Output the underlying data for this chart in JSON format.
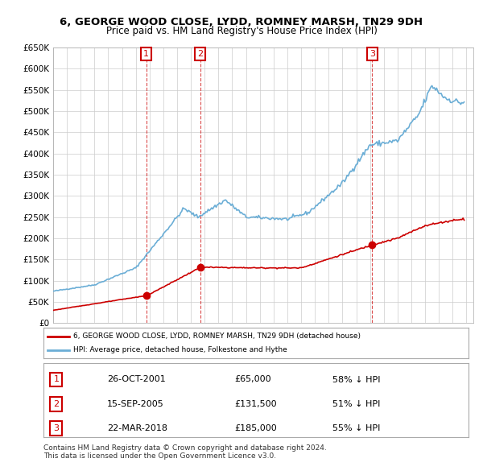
{
  "title": "6, GEORGE WOOD CLOSE, LYDD, ROMNEY MARSH, TN29 9DH",
  "subtitle": "Price paid vs. HM Land Registry's House Price Index (HPI)",
  "sales": [
    {
      "date": "2001-10-26",
      "price": 65000,
      "label": "1"
    },
    {
      "date": "2005-09-15",
      "price": 131500,
      "label": "2"
    },
    {
      "date": "2018-03-22",
      "price": 185000,
      "label": "3"
    }
  ],
  "sale_display": [
    {
      "num": "1",
      "date": "26-OCT-2001",
      "price": "£65,000",
      "pct": "58% ↓ HPI"
    },
    {
      "num": "2",
      "date": "15-SEP-2005",
      "price": "£131,500",
      "pct": "51% ↓ HPI"
    },
    {
      "num": "3",
      "date": "22-MAR-2018",
      "price": "£185,000",
      "pct": "55% ↓ HPI"
    }
  ],
  "legend_property": "6, GEORGE WOOD CLOSE, LYDD, ROMNEY MARSH, TN29 9DH (detached house)",
  "legend_hpi": "HPI: Average price, detached house, Folkestone and Hythe",
  "footer": "Contains HM Land Registry data © Crown copyright and database right 2024.\nThis data is licensed under the Open Government Licence v3.0.",
  "ylim": [
    0,
    650000
  ],
  "yticks": [
    0,
    50000,
    100000,
    150000,
    200000,
    250000,
    300000,
    350000,
    400000,
    450000,
    500000,
    550000,
    600000,
    650000
  ],
  "background_color": "#ffffff",
  "grid_color": "#cccccc",
  "property_line_color": "#cc0000",
  "hpi_line_color": "#6baed6",
  "sale_dot_color": "#cc0000",
  "vline_color": "#cc0000",
  "box_color": "#cc0000"
}
